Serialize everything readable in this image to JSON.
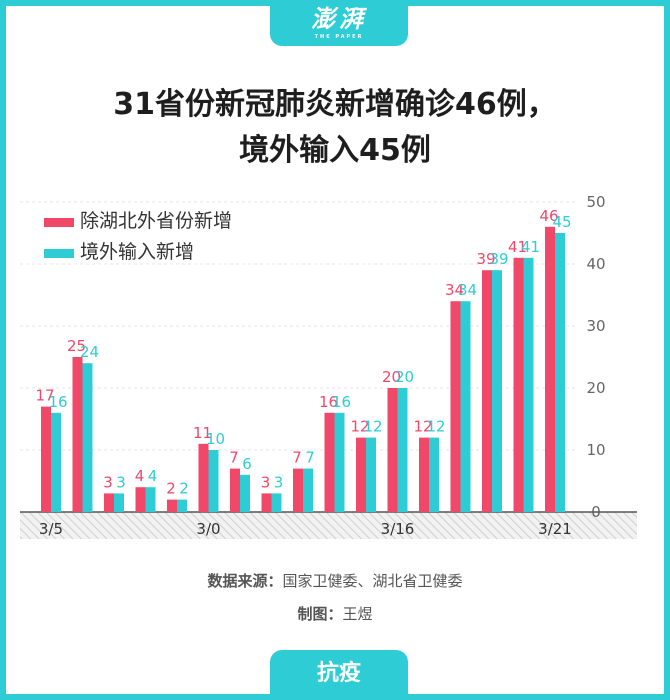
{
  "header": {
    "logo_text": "澎湃",
    "logo_subtext": "THE PAPER"
  },
  "title": {
    "line1": "31省份新冠肺炎新增确诊46例，",
    "line2": "境外输入45例"
  },
  "footer": {
    "source_label": "数据来源：",
    "source_text": "国家卫健委、湖北省卫健委",
    "author_label": "制图：",
    "author_text": "王煜",
    "tab_label": "抗疫"
  },
  "colors": {
    "series1": "#f1486a",
    "series2": "#2ecdd6",
    "frame": "#2ecdd6"
  },
  "chart_data": {
    "type": "bar",
    "title": "",
    "xlabel": "",
    "ylabel": "",
    "ylim": [
      0,
      50
    ],
    "yticks": [
      "0",
      "10",
      "20",
      "30",
      "40",
      "50"
    ],
    "xtick_labels": [
      "3/5",
      "3/0",
      "3/16",
      "3/21"
    ],
    "grid": true,
    "legend_position": "top-left",
    "series": [
      {
        "name": "除湖北外省份新增",
        "values": [
          17,
          25,
          3,
          4,
          2,
          11,
          7,
          3,
          7,
          16,
          12,
          20,
          12,
          34,
          39,
          41,
          46
        ]
      },
      {
        "name": "境外输入新增",
        "values": [
          16,
          24,
          3,
          4,
          2,
          10,
          6,
          3,
          7,
          16,
          12,
          20,
          12,
          34,
          39,
          41,
          45
        ]
      }
    ]
  }
}
